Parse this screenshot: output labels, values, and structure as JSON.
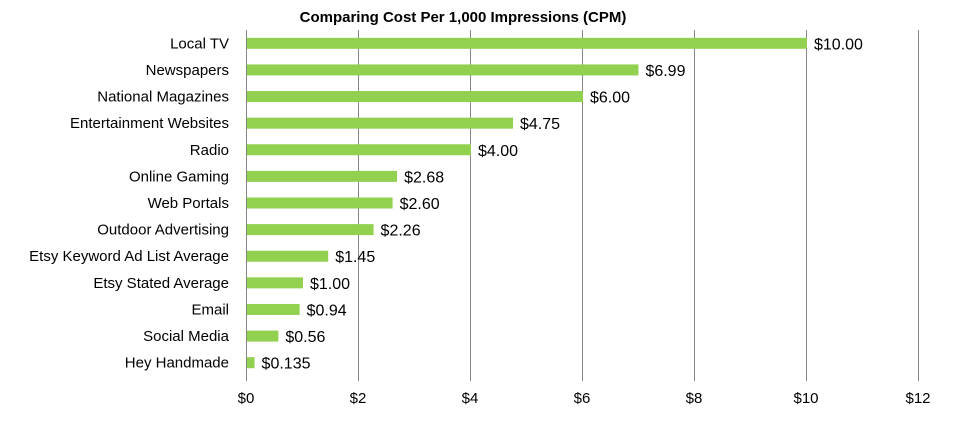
{
  "chart_data": {
    "type": "bar",
    "orientation": "horizontal",
    "title": "Comparing Cost Per 1,000 Impressions (CPM)",
    "xlabel": "",
    "ylabel": "",
    "categories": [
      "Local TV",
      "Newspapers",
      "National Magazines",
      "Entertainment Websites",
      "Radio",
      "Online Gaming",
      "Web Portals",
      "Outdoor Advertising",
      "Etsy Keyword Ad List Average",
      "Etsy Stated Average",
      "Email",
      "Social Media",
      "Hey Handmade"
    ],
    "values": [
      10.0,
      6.99,
      6.0,
      4.75,
      4.0,
      2.68,
      2.6,
      2.26,
      1.45,
      1.0,
      0.94,
      0.56,
      0.135
    ],
    "value_labels": [
      "$10.00",
      "$6.99",
      "$6.00",
      "$4.75",
      "$4.00",
      "$2.68",
      "$2.60",
      "$2.26",
      "$1.45",
      "$1.00",
      "$0.94",
      "$0.56",
      "$0.135"
    ],
    "xlim": [
      0,
      12
    ],
    "xticks": [
      0,
      2,
      4,
      6,
      8,
      10,
      12
    ],
    "xtick_labels": [
      "$0",
      "$2",
      "$4",
      "$6",
      "$8",
      "$10",
      "$12"
    ],
    "grid": "vertical",
    "legend": "none",
    "bar_color": "#92D050",
    "gridline_color": "#868686"
  }
}
